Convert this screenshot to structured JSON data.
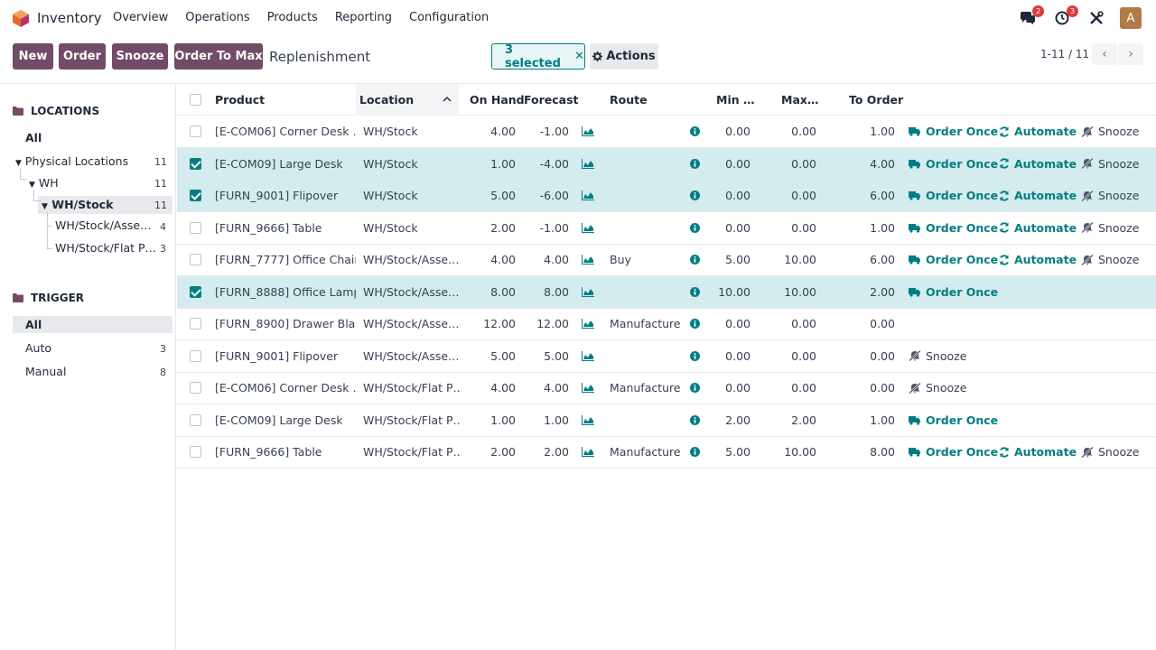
{
  "navbar": {
    "app_name": "Inventory",
    "menu": [
      "Overview",
      "Operations",
      "Products",
      "Reporting",
      "Configuration"
    ],
    "messages_count": "2",
    "activities_count": "3",
    "avatar_letter": "A"
  },
  "control": {
    "buttons": [
      "New",
      "Order",
      "Snooze",
      "Order To Max"
    ],
    "title": "Replenishment",
    "selected_label": "3 selected",
    "actions_label": "Actions",
    "pager": "1-11 / 11"
  },
  "sidepanel": {
    "locations_title": "LOCATIONS",
    "locations": [
      {
        "label": "All",
        "count": ""
      },
      {
        "label": "Physical Locations",
        "count": "11"
      },
      {
        "label": "WH",
        "count": "11"
      },
      {
        "label": "WH/Stock",
        "count": "11"
      },
      {
        "label": "WH/Stock/Asse…",
        "count": "4"
      },
      {
        "label": "WH/Stock/Flat P…",
        "count": "3"
      }
    ],
    "trigger_title": "TRIGGER",
    "triggers": [
      {
        "label": "All",
        "count": ""
      },
      {
        "label": "Auto",
        "count": "3"
      },
      {
        "label": "Manual",
        "count": "8"
      }
    ]
  },
  "table": {
    "headers": {
      "product": "Product",
      "location": "Location",
      "on_hand": "On Hand",
      "forecast": "Forecast",
      "route": "Route",
      "min": "Min …",
      "max": "Max…",
      "to_order": "To Order"
    },
    "action_labels": {
      "order_once": "Order Once",
      "automate": "Automate",
      "snooze": "Snooze"
    },
    "rows": [
      {
        "sel": false,
        "product": "[E-COM06] Corner Desk …",
        "location": "WH/Stock",
        "on_hand": "4.00",
        "forecast": "-1.00",
        "route": "",
        "min": "0.00",
        "max": "0.00",
        "to_order": "1.00",
        "actions": [
          "order_once",
          "automate",
          "snooze"
        ]
      },
      {
        "sel": true,
        "product": "[E-COM09] Large Desk",
        "location": "WH/Stock",
        "on_hand": "1.00",
        "forecast": "-4.00",
        "route": "",
        "min": "0.00",
        "max": "0.00",
        "to_order": "4.00",
        "actions": [
          "order_once",
          "automate",
          "snooze"
        ]
      },
      {
        "sel": true,
        "product": "[FURN_9001] Flipover",
        "location": "WH/Stock",
        "on_hand": "5.00",
        "forecast": "-6.00",
        "route": "",
        "min": "0.00",
        "max": "0.00",
        "to_order": "6.00",
        "actions": [
          "order_once",
          "automate",
          "snooze"
        ]
      },
      {
        "sel": false,
        "product": "[FURN_9666] Table",
        "location": "WH/Stock",
        "on_hand": "2.00",
        "forecast": "-1.00",
        "route": "",
        "min": "0.00",
        "max": "0.00",
        "to_order": "1.00",
        "actions": [
          "order_once",
          "automate",
          "snooze"
        ]
      },
      {
        "sel": false,
        "product": "[FURN_7777] Office Chair",
        "location": "WH/Stock/Asse…",
        "on_hand": "4.00",
        "forecast": "4.00",
        "route": "Buy",
        "min": "5.00",
        "max": "10.00",
        "to_order": "6.00",
        "actions": [
          "order_once",
          "automate",
          "snooze"
        ]
      },
      {
        "sel": true,
        "product": "[FURN_8888] Office Lamp",
        "location": "WH/Stock/Asse…",
        "on_hand": "8.00",
        "forecast": "8.00",
        "route": "",
        "min": "10.00",
        "max": "10.00",
        "to_order": "2.00",
        "actions": [
          "order_once"
        ]
      },
      {
        "sel": false,
        "product": "[FURN_8900] Drawer Black",
        "location": "WH/Stock/Asse…",
        "on_hand": "12.00",
        "forecast": "12.00",
        "route": "Manufacture",
        "min": "0.00",
        "max": "0.00",
        "to_order": "0.00",
        "actions": []
      },
      {
        "sel": false,
        "product": "[FURN_9001] Flipover",
        "location": "WH/Stock/Asse…",
        "on_hand": "5.00",
        "forecast": "5.00",
        "route": "",
        "min": "0.00",
        "max": "0.00",
        "to_order": "0.00",
        "actions": [
          "snooze_first"
        ]
      },
      {
        "sel": false,
        "product": "[E-COM06] Corner Desk …",
        "location": "WH/Stock/Flat P…",
        "on_hand": "4.00",
        "forecast": "4.00",
        "route": "Manufacture",
        "min": "0.00",
        "max": "0.00",
        "to_order": "0.00",
        "actions": [
          "snooze_first"
        ]
      },
      {
        "sel": false,
        "product": "[E-COM09] Large Desk",
        "location": "WH/Stock/Flat P…",
        "on_hand": "1.00",
        "forecast": "1.00",
        "route": "",
        "min": "2.00",
        "max": "2.00",
        "to_order": "1.00",
        "actions": [
          "order_once"
        ]
      },
      {
        "sel": false,
        "product": "[FURN_9666] Table",
        "location": "WH/Stock/Flat P…",
        "on_hand": "2.00",
        "forecast": "2.00",
        "route": "Manufacture",
        "min": "5.00",
        "max": "10.00",
        "to_order": "8.00",
        "actions": [
          "order_once",
          "automate",
          "snooze"
        ]
      }
    ]
  },
  "colors": {
    "brand": "#714b67",
    "teal": "#017e84",
    "selected_row": "#d4ecee"
  }
}
